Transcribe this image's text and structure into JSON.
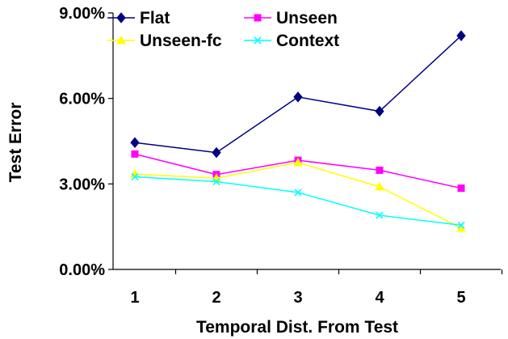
{
  "chart_data": {
    "type": "line",
    "title": "",
    "xlabel": "Temporal Dist. From Test",
    "ylabel": "Test Error",
    "categories": [
      "1",
      "2",
      "3",
      "4",
      "5"
    ],
    "ylim": [
      0,
      0.09
    ],
    "yticks": [
      0,
      0.03,
      0.06,
      0.09
    ],
    "ytick_labels": [
      "0.00%",
      "3.00%",
      "6.00%",
      "9.00%"
    ],
    "grid": false,
    "legend_position": "top",
    "series": [
      {
        "name": "Flat",
        "color": "#000080",
        "marker": "diamond",
        "values": [
          0.0445,
          0.041,
          0.0605,
          0.0555,
          0.082
        ]
      },
      {
        "name": "Unseen",
        "color": "#ff00ff",
        "marker": "square",
        "values": [
          0.0405,
          0.0333,
          0.0383,
          0.0348,
          0.0285
        ]
      },
      {
        "name": "Unseen-fc",
        "color": "#ffff00",
        "marker": "triangle",
        "values": [
          0.0335,
          0.032,
          0.0375,
          0.029,
          0.0145
        ]
      },
      {
        "name": "Context",
        "color": "#00ffff",
        "marker": "x",
        "values": [
          0.0325,
          0.0308,
          0.027,
          0.019,
          0.0155
        ]
      }
    ]
  }
}
